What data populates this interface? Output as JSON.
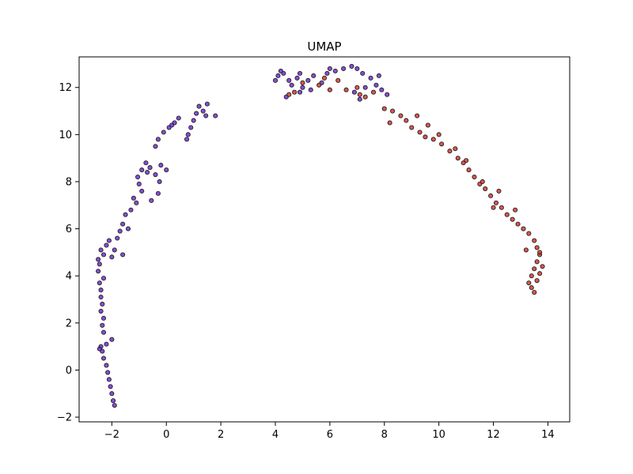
{
  "chart_data": {
    "type": "scatter",
    "title": "UMAP",
    "xlabel": "",
    "ylabel": "",
    "xlim": [
      -3.2,
      14.8
    ],
    "ylim": [
      -2.2,
      13.3
    ],
    "xticks": [
      -2,
      0,
      2,
      4,
      6,
      8,
      10,
      12,
      14
    ],
    "yticks": [
      -2,
      0,
      2,
      4,
      6,
      8,
      10,
      12
    ],
    "grid": false,
    "legend": "none",
    "colors": {
      "purple": "#6a1fd0",
      "red": "#d42a1f",
      "edge": "#222222"
    },
    "series": [
      {
        "color": "purple",
        "points": [
          [
            -1.9,
            -1.5
          ],
          [
            -1.95,
            -1.3
          ],
          [
            -2.0,
            -1.0
          ],
          [
            -2.05,
            -0.7
          ],
          [
            -2.1,
            -0.4
          ],
          [
            -2.15,
            -0.1
          ],
          [
            -2.2,
            0.2
          ],
          [
            -2.3,
            0.5
          ],
          [
            -2.35,
            0.8
          ],
          [
            -2.4,
            1.0
          ],
          [
            -2.2,
            1.1
          ],
          [
            -2.0,
            1.3
          ],
          [
            -2.3,
            1.6
          ],
          [
            -2.35,
            1.9
          ],
          [
            -2.3,
            2.2
          ],
          [
            -2.4,
            2.5
          ],
          [
            -2.35,
            2.8
          ],
          [
            -2.4,
            3.1
          ],
          [
            -2.4,
            3.4
          ],
          [
            -2.45,
            3.7
          ],
          [
            -2.3,
            3.9
          ],
          [
            -2.5,
            4.2
          ],
          [
            -2.45,
            4.5
          ],
          [
            -2.5,
            4.7
          ],
          [
            -2.3,
            4.9
          ],
          [
            -2.4,
            5.1
          ],
          [
            -2.2,
            5.3
          ],
          [
            -2.1,
            5.5
          ],
          [
            -2.0,
            4.8
          ],
          [
            -1.9,
            5.1
          ],
          [
            -1.8,
            5.6
          ],
          [
            -1.7,
            5.9
          ],
          [
            -1.6,
            6.2
          ],
          [
            -1.5,
            6.6
          ],
          [
            -1.3,
            6.8
          ],
          [
            -1.1,
            7.1
          ],
          [
            -1.2,
            7.3
          ],
          [
            -0.9,
            7.6
          ],
          [
            -1.0,
            7.9
          ],
          [
            -1.05,
            8.2
          ],
          [
            -0.9,
            8.5
          ],
          [
            -0.75,
            8.8
          ],
          [
            -0.6,
            8.6
          ],
          [
            -0.4,
            8.3
          ],
          [
            -0.25,
            8.0
          ],
          [
            -0.2,
            8.7
          ],
          [
            0.0,
            8.5
          ],
          [
            -0.55,
            7.2
          ],
          [
            -0.3,
            7.5
          ],
          [
            -0.4,
            9.5
          ],
          [
            -0.3,
            9.8
          ],
          [
            -0.1,
            10.1
          ],
          [
            0.1,
            10.3
          ],
          [
            0.3,
            10.5
          ],
          [
            0.45,
            10.7
          ],
          [
            0.8,
            10.0
          ],
          [
            0.9,
            10.3
          ],
          [
            1.0,
            10.6
          ],
          [
            1.1,
            10.9
          ],
          [
            1.2,
            11.2
          ],
          [
            1.35,
            11.0
          ],
          [
            1.45,
            10.8
          ],
          [
            1.5,
            11.3
          ],
          [
            1.8,
            10.8
          ],
          [
            0.75,
            9.8
          ],
          [
            -1.6,
            4.9
          ],
          [
            -1.4,
            6.0
          ],
          [
            -0.7,
            8.4
          ],
          [
            0.2,
            10.4
          ],
          [
            -2.45,
            0.9
          ],
          [
            4.0,
            12.3
          ],
          [
            4.1,
            12.5
          ],
          [
            4.3,
            12.6
          ],
          [
            4.5,
            12.3
          ],
          [
            4.2,
            12.7
          ],
          [
            4.6,
            12.1
          ],
          [
            4.8,
            12.4
          ],
          [
            4.9,
            12.6
          ],
          [
            5.0,
            12.0
          ],
          [
            5.2,
            12.3
          ],
          [
            5.4,
            12.5
          ],
          [
            5.3,
            11.9
          ],
          [
            4.9,
            11.8
          ],
          [
            5.7,
            12.2
          ],
          [
            5.9,
            12.6
          ],
          [
            6.0,
            12.8
          ],
          [
            6.2,
            12.7
          ],
          [
            6.5,
            12.8
          ],
          [
            6.8,
            12.9
          ],
          [
            7.0,
            12.8
          ],
          [
            7.2,
            12.6
          ],
          [
            7.5,
            12.4
          ],
          [
            7.8,
            12.5
          ],
          [
            7.7,
            12.1
          ],
          [
            7.9,
            11.9
          ],
          [
            8.1,
            11.7
          ],
          [
            7.1,
            11.5
          ],
          [
            7.3,
            12.0
          ],
          [
            6.9,
            11.8
          ],
          [
            4.4,
            11.6
          ]
        ]
      },
      {
        "color": "red",
        "points": [
          [
            4.5,
            11.7
          ],
          [
            4.7,
            11.8
          ],
          [
            5.0,
            12.2
          ],
          [
            5.6,
            12.1
          ],
          [
            6.3,
            12.3
          ],
          [
            6.6,
            11.9
          ],
          [
            7.0,
            12.0
          ],
          [
            7.1,
            11.7
          ],
          [
            7.3,
            11.6
          ],
          [
            8.0,
            11.1
          ],
          [
            8.3,
            11.0
          ],
          [
            8.6,
            10.8
          ],
          [
            8.8,
            10.6
          ],
          [
            9.0,
            10.3
          ],
          [
            9.3,
            10.1
          ],
          [
            9.5,
            9.9
          ],
          [
            9.8,
            9.8
          ],
          [
            10.1,
            9.6
          ],
          [
            10.4,
            9.3
          ],
          [
            10.7,
            9.0
          ],
          [
            10.9,
            8.8
          ],
          [
            11.1,
            8.5
          ],
          [
            11.3,
            8.2
          ],
          [
            11.5,
            7.9
          ],
          [
            11.7,
            7.7
          ],
          [
            11.9,
            7.4
          ],
          [
            12.1,
            7.1
          ],
          [
            12.3,
            6.9
          ],
          [
            12.5,
            6.6
          ],
          [
            12.7,
            6.4
          ],
          [
            12.9,
            6.2
          ],
          [
            13.1,
            6.0
          ],
          [
            13.3,
            5.8
          ],
          [
            13.5,
            5.5
          ],
          [
            13.6,
            5.2
          ],
          [
            13.7,
            4.9
          ],
          [
            13.6,
            4.6
          ],
          [
            13.5,
            4.3
          ],
          [
            13.4,
            4.0
          ],
          [
            13.6,
            3.8
          ],
          [
            13.4,
            3.5
          ],
          [
            13.5,
            3.3
          ],
          [
            13.7,
            4.1
          ],
          [
            13.8,
            4.4
          ],
          [
            13.2,
            5.1
          ],
          [
            12.8,
            6.8
          ],
          [
            11.6,
            8.0
          ],
          [
            10.6,
            9.4
          ],
          [
            9.6,
            10.4
          ],
          [
            8.2,
            10.5
          ],
          [
            7.6,
            11.8
          ],
          [
            6.0,
            11.9
          ],
          [
            5.8,
            12.4
          ],
          [
            9.2,
            10.8
          ],
          [
            12.2,
            7.6
          ],
          [
            13.3,
            3.7
          ],
          [
            13.7,
            5.0
          ],
          [
            11.0,
            8.9
          ],
          [
            10.0,
            10.0
          ],
          [
            12.0,
            6.9
          ]
        ]
      }
    ]
  }
}
